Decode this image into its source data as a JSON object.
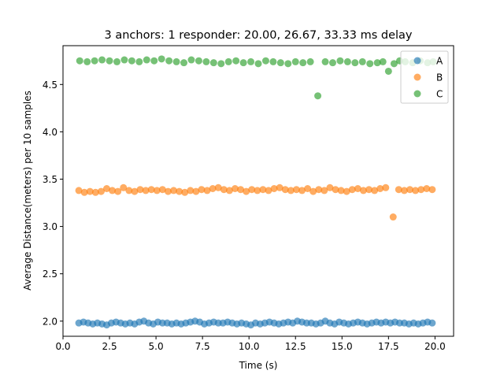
{
  "chart_data": {
    "type": "scatter",
    "title": "3 anchors: 1 responder: 20.00, 26.67, 33.33 ms delay",
    "xlabel": "Time (s)",
    "ylabel": "Average Distance(meters) per 10 samples",
    "xlim": [
      0.0,
      21.0
    ],
    "ylim": [
      1.84,
      4.91
    ],
    "xticks": [
      0.0,
      2.5,
      5.0,
      7.5,
      10.0,
      12.5,
      15.0,
      17.5,
      20.0
    ],
    "xtick_labels": [
      "0.0",
      "2.5",
      "5.0",
      "7.5",
      "10.0",
      "12.5",
      "15.0",
      "17.5",
      "20.0"
    ],
    "yticks": [
      2.0,
      2.5,
      3.0,
      3.5,
      4.0,
      4.5
    ],
    "ytick_labels": [
      "2.0",
      "2.5",
      "3.0",
      "3.5",
      "4.0",
      "4.5"
    ],
    "legend_position": "top-right",
    "grid": false,
    "series": [
      {
        "name": "A",
        "color": "#1f77b4",
        "x": [
          0.85,
          1.1,
          1.35,
          1.6,
          1.85,
          2.1,
          2.35,
          2.6,
          2.85,
          3.1,
          3.35,
          3.6,
          3.85,
          4.1,
          4.35,
          4.6,
          4.85,
          5.1,
          5.35,
          5.6,
          5.85,
          6.1,
          6.35,
          6.6,
          6.85,
          7.1,
          7.35,
          7.6,
          7.85,
          8.1,
          8.35,
          8.6,
          8.85,
          9.1,
          9.35,
          9.6,
          9.85,
          10.1,
          10.35,
          10.6,
          10.85,
          11.1,
          11.35,
          11.6,
          11.85,
          12.1,
          12.35,
          12.6,
          12.85,
          13.1,
          13.35,
          13.6,
          13.85,
          14.1,
          14.35,
          14.6,
          14.85,
          15.1,
          15.35,
          15.6,
          15.85,
          16.1,
          16.35,
          16.6,
          16.85,
          17.1,
          17.35,
          17.6,
          17.85,
          18.1,
          18.35,
          18.6,
          18.85,
          19.1,
          19.35,
          19.6,
          19.85
        ],
        "y": [
          1.98,
          1.99,
          1.98,
          1.97,
          1.98,
          1.97,
          1.96,
          1.98,
          1.99,
          1.98,
          1.97,
          1.98,
          1.97,
          1.99,
          2.0,
          1.98,
          1.97,
          1.99,
          1.98,
          1.98,
          1.97,
          1.98,
          1.97,
          1.98,
          1.99,
          2.0,
          1.99,
          1.97,
          1.98,
          1.99,
          1.98,
          1.98,
          1.99,
          1.98,
          1.97,
          1.98,
          1.97,
          1.96,
          1.98,
          1.97,
          1.98,
          1.99,
          1.98,
          1.97,
          1.98,
          1.99,
          1.98,
          2.0,
          1.99,
          1.98,
          1.98,
          1.97,
          1.98,
          2.0,
          1.98,
          1.97,
          1.99,
          1.98,
          1.97,
          1.98,
          1.99,
          1.98,
          1.97,
          1.98,
          1.99,
          1.98,
          1.99,
          1.98,
          1.99,
          1.98,
          1.98,
          1.97,
          1.98,
          1.97,
          1.98,
          1.99,
          1.98
        ]
      },
      {
        "name": "B",
        "color": "#ff7f0e",
        "x": [
          0.85,
          1.15,
          1.45,
          1.75,
          2.05,
          2.35,
          2.65,
          2.95,
          3.25,
          3.55,
          3.85,
          4.15,
          4.45,
          4.75,
          5.05,
          5.35,
          5.65,
          5.95,
          6.25,
          6.55,
          6.85,
          7.15,
          7.45,
          7.75,
          8.05,
          8.35,
          8.65,
          8.95,
          9.25,
          9.55,
          9.85,
          10.15,
          10.45,
          10.75,
          11.05,
          11.35,
          11.65,
          11.95,
          12.25,
          12.55,
          12.85,
          13.15,
          13.45,
          13.75,
          14.05,
          14.35,
          14.65,
          14.95,
          15.25,
          15.55,
          15.85,
          16.15,
          16.45,
          16.75,
          17.05,
          17.35,
          17.75,
          18.05,
          18.35,
          18.65,
          18.95,
          19.25,
          19.55,
          19.85
        ],
        "y": [
          3.38,
          3.36,
          3.37,
          3.36,
          3.37,
          3.4,
          3.38,
          3.37,
          3.41,
          3.38,
          3.37,
          3.39,
          3.38,
          3.39,
          3.38,
          3.39,
          3.37,
          3.38,
          3.37,
          3.36,
          3.38,
          3.37,
          3.39,
          3.38,
          3.4,
          3.41,
          3.39,
          3.38,
          3.4,
          3.39,
          3.37,
          3.39,
          3.38,
          3.39,
          3.38,
          3.4,
          3.41,
          3.39,
          3.38,
          3.39,
          3.38,
          3.4,
          3.37,
          3.39,
          3.38,
          3.41,
          3.39,
          3.38,
          3.37,
          3.39,
          3.4,
          3.38,
          3.39,
          3.38,
          3.4,
          3.41,
          3.1,
          3.39,
          3.38,
          3.39,
          3.38,
          3.39,
          3.4,
          3.39
        ]
      },
      {
        "name": "C",
        "color": "#2ca02c",
        "x": [
          0.9,
          1.3,
          1.7,
          2.1,
          2.5,
          2.9,
          3.3,
          3.7,
          4.1,
          4.5,
          4.9,
          5.3,
          5.7,
          6.1,
          6.5,
          6.9,
          7.3,
          7.7,
          8.1,
          8.5,
          8.9,
          9.3,
          9.7,
          10.1,
          10.5,
          10.9,
          11.3,
          11.7,
          12.1,
          12.5,
          12.9,
          13.3,
          13.7,
          14.1,
          14.5,
          14.9,
          15.3,
          15.7,
          16.1,
          16.5,
          16.9,
          17.2,
          17.5,
          17.8,
          18.1,
          18.4,
          18.8,
          19.2,
          19.6,
          19.9
        ],
        "y": [
          4.75,
          4.74,
          4.75,
          4.76,
          4.75,
          4.74,
          4.76,
          4.75,
          4.74,
          4.76,
          4.75,
          4.77,
          4.75,
          4.74,
          4.73,
          4.76,
          4.75,
          4.74,
          4.73,
          4.72,
          4.74,
          4.75,
          4.73,
          4.74,
          4.72,
          4.75,
          4.74,
          4.73,
          4.72,
          4.74,
          4.73,
          4.74,
          4.38,
          4.74,
          4.73,
          4.75,
          4.74,
          4.73,
          4.74,
          4.72,
          4.73,
          4.74,
          4.64,
          4.72,
          4.75,
          4.74,
          4.73,
          4.75,
          4.73,
          4.74
        ]
      }
    ]
  }
}
